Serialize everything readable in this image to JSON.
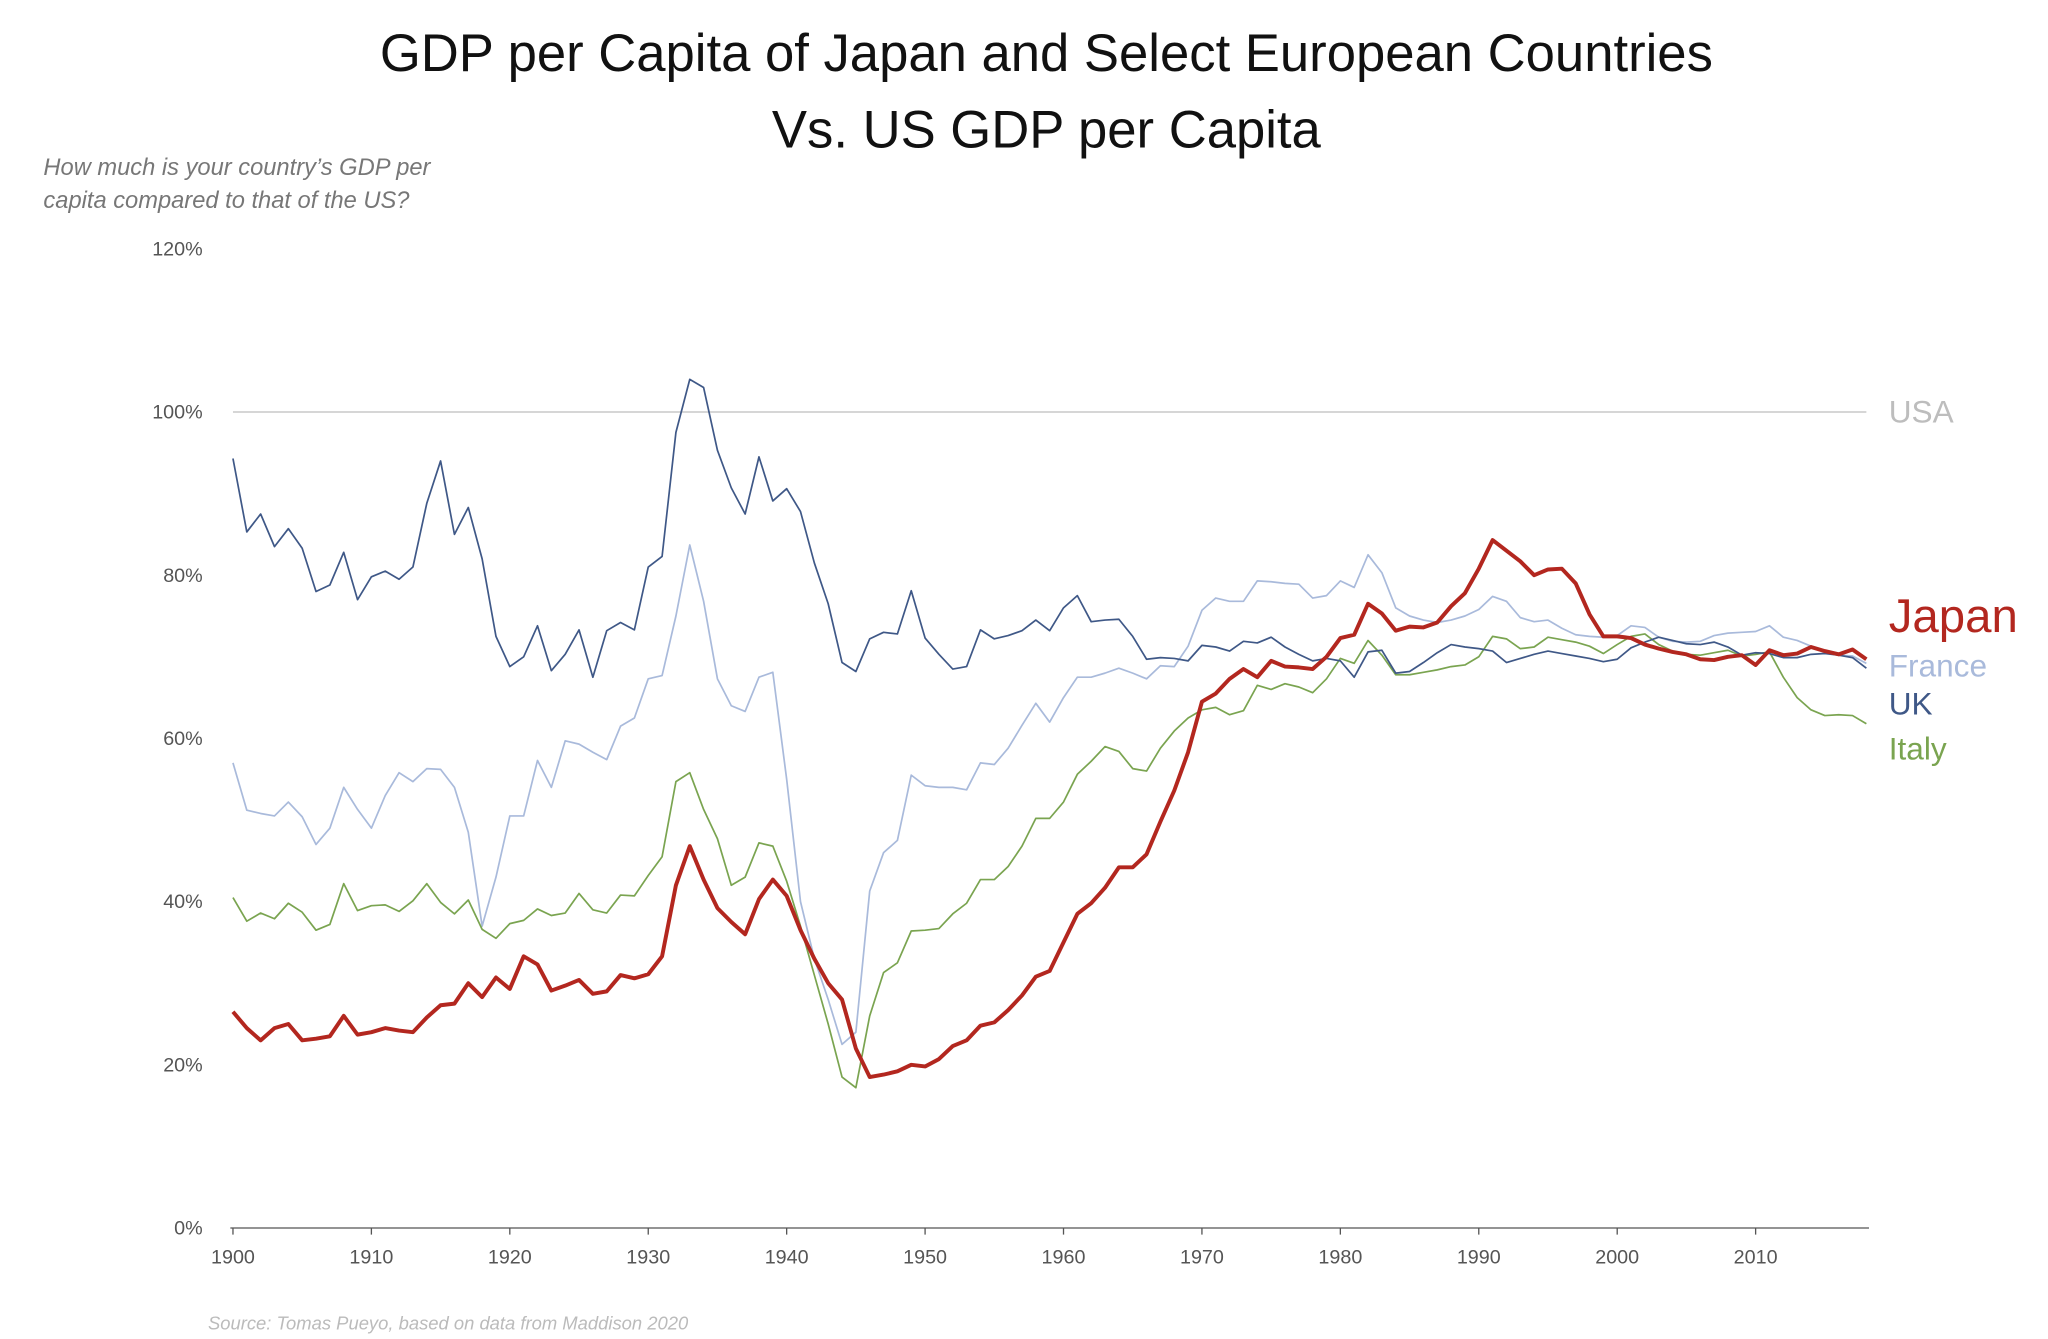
{
  "chart_data": {
    "type": "line",
    "title": [
      "GDP per Capita of Japan and Select European Countries",
      "Vs. US GDP per Capita"
    ],
    "subtitle": [
      "How much is your country’s GDP per",
      "capita compared to that of the US?"
    ],
    "source": "Source: Tomas Pueyo, based on data from Maddison 2020",
    "x": [
      1900,
      1901,
      1902,
      1903,
      1904,
      1905,
      1906,
      1907,
      1908,
      1909,
      1910,
      1911,
      1912,
      1913,
      1914,
      1915,
      1916,
      1917,
      1918,
      1919,
      1920,
      1921,
      1922,
      1923,
      1924,
      1925,
      1926,
      1927,
      1928,
      1929,
      1930,
      1931,
      1932,
      1933,
      1934,
      1935,
      1936,
      1937,
      1938,
      1939,
      1940,
      1941,
      1942,
      1943,
      1944,
      1945,
      1946,
      1947,
      1948,
      1949,
      1950,
      1951,
      1952,
      1953,
      1954,
      1955,
      1956,
      1957,
      1958,
      1959,
      1960,
      1961,
      1962,
      1963,
      1964,
      1965,
      1966,
      1967,
      1968,
      1969,
      1970,
      1971,
      1972,
      1973,
      1974,
      1975,
      1976,
      1977,
      1978,
      1979,
      1980,
      1981,
      1982,
      1983,
      1984,
      1985,
      1986,
      1987,
      1988,
      1989,
      1990,
      1991,
      1992,
      1993,
      1994,
      1995,
      1996,
      1997,
      1998,
      1999,
      2000,
      2001,
      2002,
      2003,
      2004,
      2005,
      2006,
      2007,
      2008,
      2009,
      2010,
      2011,
      2012,
      2013,
      2014,
      2015,
      2016,
      2017,
      2018
    ],
    "xlim": [
      1900,
      2018
    ],
    "xticks": [
      1900,
      1910,
      1920,
      1930,
      1940,
      1950,
      1960,
      1970,
      1980,
      1990,
      2000,
      2010
    ],
    "ylim": [
      0,
      120
    ],
    "yticks": [
      {
        "value": 0,
        "label": "0%"
      },
      {
        "value": 20,
        "label": "20%"
      },
      {
        "value": 40,
        "label": "40%"
      },
      {
        "value": 60,
        "label": "60%"
      },
      {
        "value": 80,
        "label": "80%"
      },
      {
        "value": 100,
        "label": "100%"
      },
      {
        "value": 120,
        "label": "120%"
      }
    ],
    "grid": false,
    "series": [
      {
        "name": "USA",
        "color": "#bdbdbd",
        "x": [
          1900,
          2018
        ],
        "values": [
          100,
          100
        ]
      },
      {
        "name": "Japan",
        "color": "#b3271f",
        "values": [
          26.5,
          24.5,
          23,
          24.5,
          25,
          23,
          23.2,
          23.5,
          26,
          23.7,
          24,
          24.5,
          24.2,
          24,
          25.8,
          27.3,
          27.5,
          30,
          28.3,
          30.7,
          29.3,
          33.3,
          32.3,
          29.1,
          29.7,
          30.4,
          28.7,
          29,
          31,
          30.6,
          31.1,
          33.3,
          42,
          46.8,
          42.7,
          39.2,
          37.5,
          36,
          40.3,
          42.7,
          40.7,
          36.5,
          33,
          30,
          28,
          22,
          18.5,
          18.8,
          19.2,
          20,
          19.8,
          20.7,
          22.3,
          23,
          24.8,
          25.2,
          26.7,
          28.5,
          30.8,
          31.5,
          35,
          38.5,
          39.8,
          41.7,
          44.2,
          44.2,
          45.8,
          49.8,
          53.6,
          58.3,
          64.5,
          65.5,
          67.3,
          68.5,
          67.5,
          69.5,
          68.8,
          68.7,
          68.5,
          70,
          72.3,
          72.7,
          76.5,
          75.3,
          73.2,
          73.7,
          73.6,
          74.2,
          76.2,
          77.8,
          80.8,
          84.3,
          83,
          81.7,
          80,
          80.7,
          80.8,
          79,
          75.2,
          72.5,
          72.5,
          72.3,
          71.5,
          71,
          70.6,
          70.3,
          69.7,
          69.6,
          70,
          70.2,
          69,
          70.8,
          70.2,
          70.4,
          71.2,
          70.7,
          70.3,
          70.9,
          69.7
        ]
      },
      {
        "name": "France",
        "color": "#a9badb",
        "values": [
          57,
          51.2,
          50.8,
          50.5,
          52.2,
          50.4,
          47,
          49,
          54,
          51.3,
          49,
          53,
          55.8,
          54.7,
          56.3,
          56.2,
          54,
          48.5,
          37,
          43,
          50.5,
          50.5,
          57.3,
          54,
          59.7,
          59.3,
          58.3,
          57.4,
          61.5,
          62.5,
          67.3,
          67.7,
          75,
          83.7,
          76.8,
          67.3,
          64,
          63.3,
          67.5,
          68.1,
          55,
          40,
          33,
          28,
          22.5,
          24,
          41.3,
          46,
          47.5,
          55.5,
          54.2,
          54,
          54,
          53.7,
          57,
          56.8,
          58.8,
          61.6,
          64.3,
          62,
          65,
          67.5,
          67.5,
          68,
          68.6,
          68,
          67.3,
          68.9,
          68.8,
          71.3,
          75.7,
          77.2,
          76.8,
          76.8,
          79.3,
          79.2,
          79,
          78.9,
          77.2,
          77.5,
          79.3,
          78.5,
          82.5,
          80.3,
          76,
          75,
          74.5,
          74.2,
          74.5,
          75,
          75.8,
          77.4,
          76.8,
          74.8,
          74.3,
          74.5,
          73.5,
          72.7,
          72.5,
          72.4,
          72.6,
          73.8,
          73.6,
          72.4,
          71.9,
          71.8,
          71.9,
          72.6,
          72.9,
          73,
          73.1,
          73.8,
          72.4,
          72,
          71.3,
          70.6,
          70.2,
          70.1,
          69.2
        ]
      },
      {
        "name": "UK",
        "color": "#3f5887",
        "values": [
          94.3,
          85.3,
          87.5,
          83.5,
          85.7,
          83.3,
          78,
          78.8,
          82.8,
          77,
          79.8,
          80.5,
          79.5,
          81,
          88.8,
          94,
          85,
          88.3,
          82,
          72.5,
          68.8,
          70,
          73.8,
          68.3,
          70.3,
          73.3,
          67.5,
          73.2,
          74.2,
          73.3,
          81,
          82.3,
          97.5,
          104,
          103,
          95.3,
          90.7,
          87.5,
          94.5,
          89.1,
          90.6,
          87.8,
          81.5,
          76.5,
          69.3,
          68.2,
          72.2,
          73,
          72.8,
          78.1,
          72.3,
          70.3,
          68.5,
          68.8,
          73.3,
          72.2,
          72.6,
          73.2,
          74.5,
          73.2,
          76,
          77.5,
          74.3,
          74.5,
          74.6,
          72.5,
          69.7,
          69.9,
          69.8,
          69.5,
          71.4,
          71.2,
          70.7,
          71.9,
          71.7,
          72.4,
          71.2,
          70.3,
          69.5,
          69.8,
          69.5,
          67.5,
          70.6,
          70.8,
          68,
          68.2,
          69.3,
          70.5,
          71.5,
          71.2,
          71,
          70.7,
          69.3,
          69.8,
          70.3,
          70.7,
          70.4,
          70.1,
          69.8,
          69.4,
          69.7,
          71.1,
          71.8,
          72.4,
          72,
          71.6,
          71.5,
          71.8,
          71.2,
          70.2,
          70.5,
          70.4,
          69.9,
          69.9,
          70.3,
          70.4,
          70.2,
          69.9,
          68.6
        ]
      },
      {
        "name": "Italy",
        "color": "#7aa450",
        "values": [
          40.5,
          37.6,
          38.6,
          37.9,
          39.8,
          38.7,
          36.5,
          37.2,
          42.2,
          38.9,
          39.5,
          39.6,
          38.8,
          40.1,
          42.2,
          39.9,
          38.5,
          40.2,
          36.6,
          35.5,
          37.3,
          37.7,
          39.1,
          38.3,
          38.6,
          41,
          39,
          38.6,
          40.8,
          40.7,
          43.2,
          45.5,
          54.7,
          55.8,
          51.3,
          47.7,
          42,
          43,
          47.2,
          46.8,
          42.5,
          37,
          31,
          25,
          18.5,
          17.2,
          26,
          31.3,
          32.5,
          36.4,
          36.5,
          36.7,
          38.5,
          39.8,
          42.7,
          42.7,
          44.3,
          46.8,
          50.2,
          50.2,
          52.2,
          55.6,
          57.2,
          59,
          58.4,
          56.3,
          56,
          58.8,
          60.9,
          62.5,
          63.5,
          63.8,
          62.9,
          63.4,
          66.5,
          66,
          66.7,
          66.3,
          65.6,
          67.3,
          69.8,
          69.2,
          72,
          70.2,
          67.8,
          67.8,
          68.1,
          68.4,
          68.8,
          69,
          70,
          72.5,
          72.2,
          71,
          71.2,
          72.4,
          72.1,
          71.8,
          71.3,
          70.4,
          71.5,
          72.5,
          72.8,
          71.5,
          70.7,
          70.3,
          70.2,
          70.5,
          70.8,
          70.1,
          70.3,
          70.6,
          67.5,
          65,
          63.5,
          62.8,
          62.9,
          62.8,
          61.8
        ]
      }
    ]
  }
}
